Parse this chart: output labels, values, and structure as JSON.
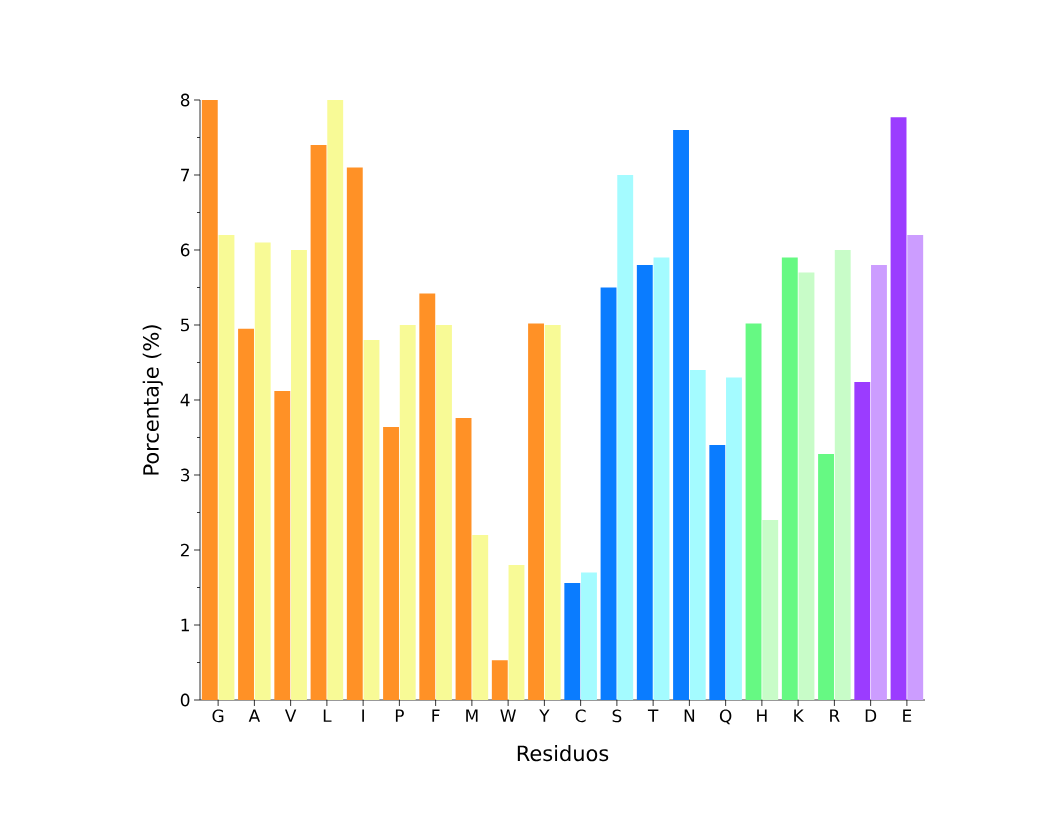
{
  "chart_data": {
    "type": "bar",
    "xlabel": "Residuos",
    "ylabel": "Porcentaje (%)",
    "categories": [
      "G",
      "A",
      "V",
      "L",
      "I",
      "P",
      "F",
      "M",
      "W",
      "Y",
      "C",
      "S",
      "T",
      "N",
      "Q",
      "H",
      "K",
      "R",
      "D",
      "E"
    ],
    "series": [
      {
        "values": [
          8.0,
          4.95,
          4.12,
          7.4,
          7.1,
          3.64,
          5.42,
          3.76,
          0.53,
          5.02,
          1.56,
          5.5,
          5.8,
          7.6,
          3.4,
          5.02,
          5.9,
          3.28,
          4.24,
          7.77
        ],
        "colors": [
          "#ff9126",
          "#ff9126",
          "#ff9126",
          "#ff9126",
          "#ff9126",
          "#ff9126",
          "#ff9126",
          "#ff9126",
          "#ff9126",
          "#ff9126",
          "#0a7cff",
          "#0a7cff",
          "#0a7cff",
          "#0a7cff",
          "#0a7cff",
          "#66f983",
          "#66f983",
          "#66f983",
          "#9b3cff",
          "#9b3cff"
        ]
      },
      {
        "values": [
          6.2,
          6.1,
          6.0,
          8.0,
          4.8,
          5.0,
          5.0,
          2.2,
          1.8,
          5.0,
          1.7,
          7.0,
          5.9,
          4.4,
          4.3,
          2.4,
          5.7,
          6.0,
          5.8,
          6.2
        ],
        "colors": [
          "#f8fa96",
          "#f8fa96",
          "#f8fa96",
          "#f8fa96",
          "#f8fa96",
          "#f8fa96",
          "#f8fa96",
          "#f8fa96",
          "#f8fa96",
          "#f8fa96",
          "#a4fbff",
          "#a4fbff",
          "#a4fbff",
          "#a4fbff",
          "#a4fbff",
          "#c8fcc8",
          "#c8fcc8",
          "#c8fcc8",
          "#cc9dff",
          "#cc9dff"
        ]
      }
    ],
    "ylim": [
      0,
      8
    ],
    "yticks": [
      0,
      1,
      2,
      3,
      4,
      5,
      6,
      7,
      8
    ],
    "grid": false
  }
}
